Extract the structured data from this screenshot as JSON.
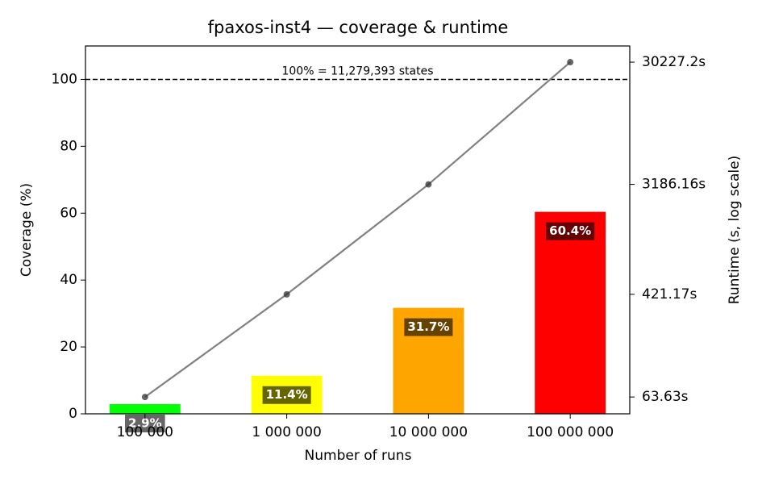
{
  "chart_data": {
    "type": "bar",
    "title": "fpaxos-inst4 — coverage & runtime",
    "x_label": "Number of runs",
    "y_label": "Coverage (%)",
    "y2_label": "Runtime (s, log scale)",
    "categories": [
      "100 000",
      "1 000 000",
      "10 000 000",
      "100 000 000"
    ],
    "values": [
      2.9,
      11.4,
      31.7,
      60.4
    ],
    "value_labels": [
      "2.9%",
      "11.4%",
      "31.7%",
      "60.4%"
    ],
    "colors": [
      "#00ff00",
      "#ffff00",
      "#ffa500",
      "#ff0000"
    ],
    "ylim": [
      0,
      110
    ],
    "yticks": [
      0,
      20,
      40,
      60,
      80,
      100
    ],
    "y2lim": [
      46.7,
      40700
    ],
    "y2_log": true,
    "y2ticks": [
      {
        "value": 63.63,
        "label": "63.63s"
      },
      {
        "value": 421.17,
        "label": "421.17s"
      },
      {
        "value": 3186.16,
        "label": "3186.16s"
      },
      {
        "value": 30227.2,
        "label": "30227.2s"
      }
    ],
    "line": {
      "type": "line",
      "axis": "y2",
      "color": "#808080",
      "values": [
        63.63,
        421.17,
        3186.16,
        30227.2
      ]
    },
    "reference_line": {
      "value": 100,
      "label": "100% = 11,279,393 states"
    }
  }
}
